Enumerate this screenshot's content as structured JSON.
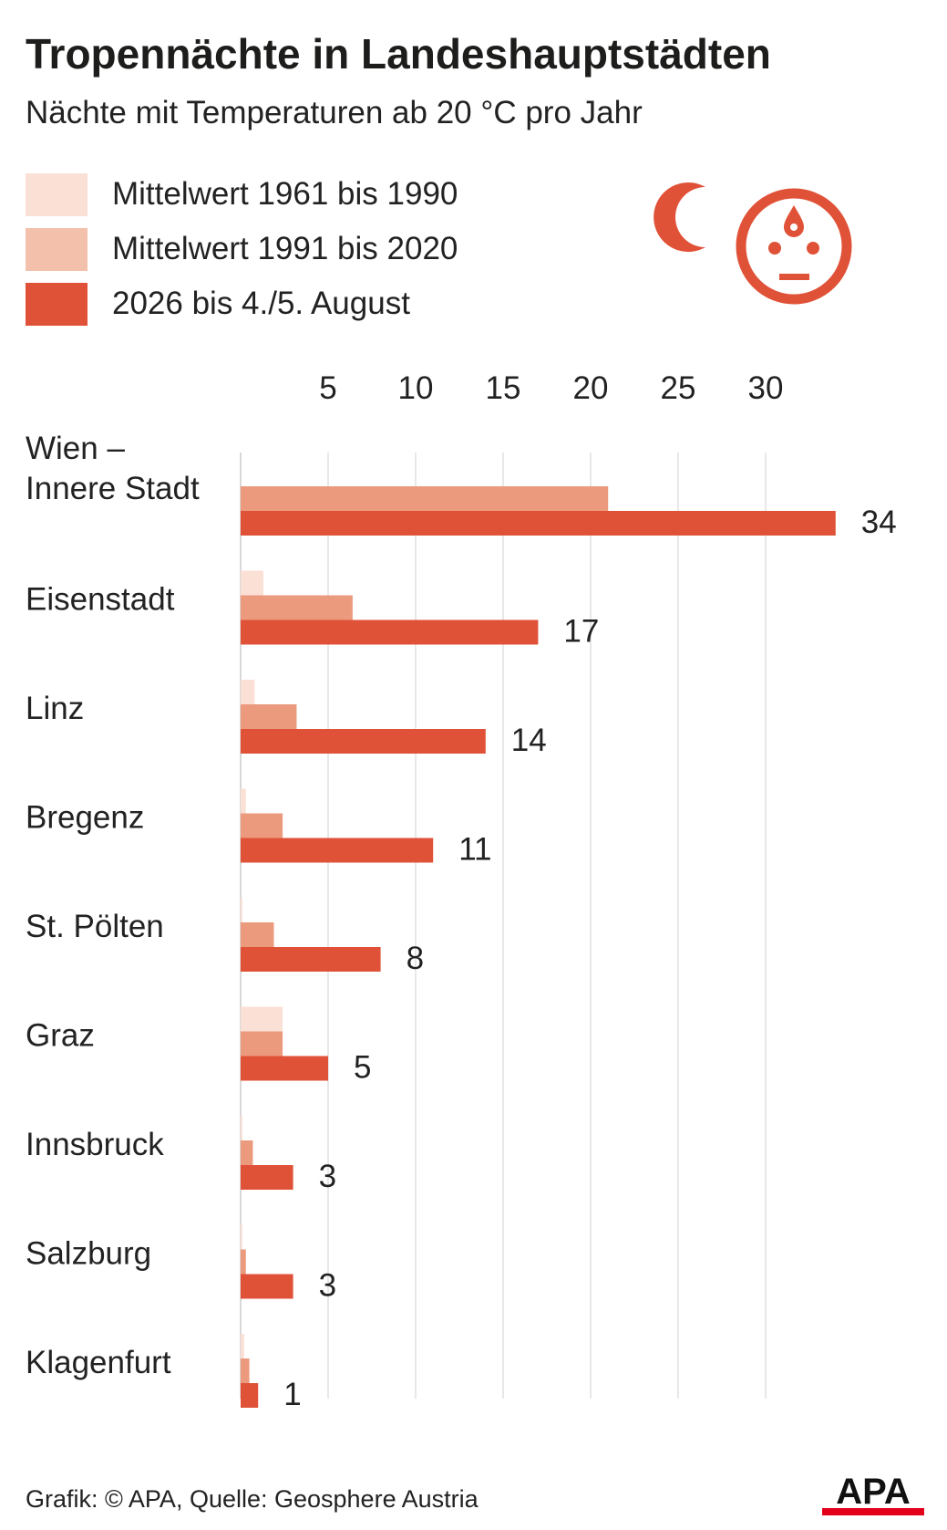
{
  "header": {
    "title": "Tropennächte in Landeshauptstädten",
    "subtitle": "Nächte mit Temperaturen ab 20 °C  pro Jahr"
  },
  "legend": [
    {
      "label": "Mittelwert 1961 bis 1990",
      "color": "#fbe0d6"
    },
    {
      "label": "Mittelwert 1991 bis 2020",
      "color": "#f2c0ab"
    },
    {
      "label": "2026 bis 4./5. August",
      "color": "#e05238"
    }
  ],
  "icons": {
    "moon": "moon-icon",
    "face": "sweating-face-icon",
    "color": "#e05238"
  },
  "chart_data": {
    "type": "bar",
    "orientation": "horizontal",
    "title": "Tropennächte in Landeshauptstädten",
    "subtitle": "Nächte mit Temperaturen ab 20 °C  pro Jahr",
    "categories": [
      [
        "Wien –",
        "Innere Stadt"
      ],
      [
        "Eisenstadt"
      ],
      [
        "Linz"
      ],
      [
        "Bregenz"
      ],
      [
        "St. Pölten"
      ],
      [
        "Graz"
      ],
      [
        "Innsbruck"
      ],
      [
        "Salzburg"
      ],
      [
        "Klagenfurt"
      ]
    ],
    "series": [
      {
        "name": "Mittelwert 1961 bis 1990",
        "color": "#fbe0d6",
        "values": [
          null,
          1.3,
          0.8,
          0.3,
          0.1,
          2.4,
          0.1,
          0.1,
          0.2
        ]
      },
      {
        "name": "Mittelwert 1991 bis 2020",
        "color": "#ec9a7e",
        "values": [
          21,
          6.4,
          3.2,
          2.4,
          1.9,
          2.4,
          0.7,
          0.3,
          0.5
        ]
      },
      {
        "name": "2026 bis 4./5. August",
        "color": "#e05238",
        "values": [
          34,
          17,
          14,
          11,
          8,
          5,
          3,
          3,
          1
        ]
      }
    ],
    "data_labels": [
      "34",
      "17",
      "14",
      "11",
      "8",
      "5",
      "3",
      "3",
      "1"
    ],
    "xticks": [
      5,
      10,
      15,
      20,
      25,
      30
    ],
    "xlim": [
      0,
      36
    ],
    "grid": true,
    "legend_position": "top-left"
  },
  "footer": {
    "source": "Grafik: © APA, Quelle: Geosphere Austria",
    "logo": "APA"
  }
}
